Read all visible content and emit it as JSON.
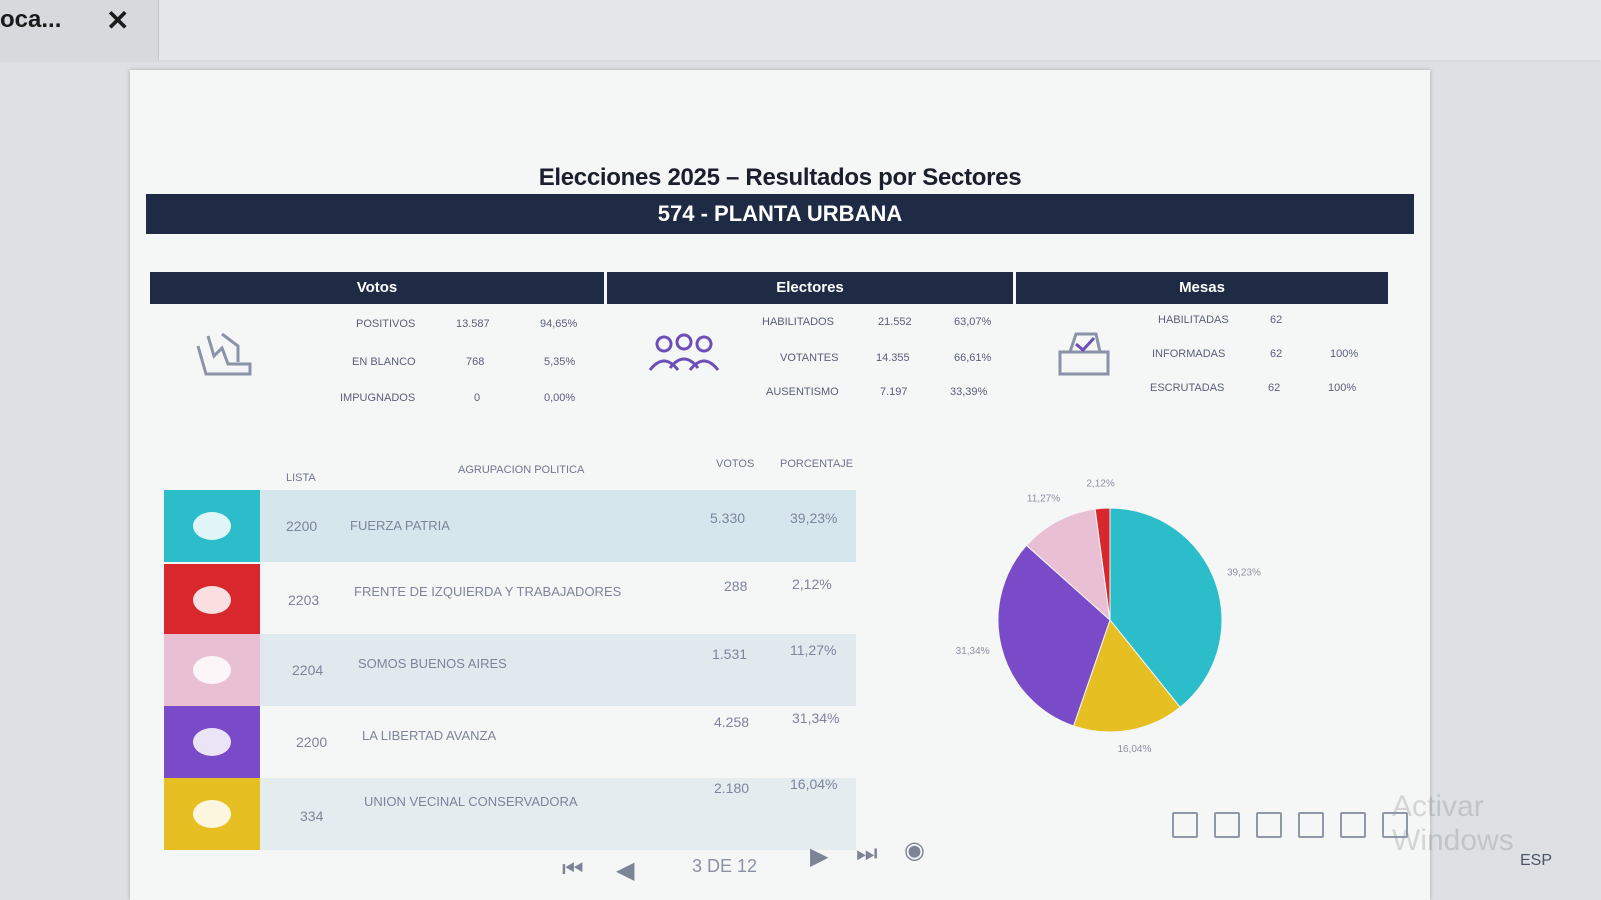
{
  "tab": {
    "title": "oca...",
    "close_label": "✕"
  },
  "report": {
    "title": "Elecciones 2025 – Resultados por Sectores",
    "subtitle": "574 - PLANTA URBANA"
  },
  "sections": {
    "votos": {
      "header": "Votos",
      "icon": "ballot-box-hand-icon",
      "rows": [
        {
          "label": "POSITIVOS",
          "value": "13.587",
          "pct": "94,65%"
        },
        {
          "label": "EN BLANCO",
          "value": "768",
          "pct": "5,35%"
        },
        {
          "label": "IMPUGNADOS",
          "value": "0",
          "pct": "0,00%"
        }
      ]
    },
    "electores": {
      "header": "Electores",
      "icon": "people-group-icon",
      "rows": [
        {
          "label": "HABILITADOS",
          "value": "21.552",
          "pct": "63,07%"
        },
        {
          "label": "VOTANTES",
          "value": "14.355",
          "pct": "66,61%"
        },
        {
          "label": "AUSENTISMO",
          "value": "7.197",
          "pct": "33,39%"
        }
      ]
    },
    "mesas": {
      "header": "Mesas",
      "icon": "ballot-box-icon",
      "rows": [
        {
          "label": "HABILITADAS",
          "value": "62",
          "pct": ""
        },
        {
          "label": "INFORMADAS",
          "value": "62",
          "pct": "100%"
        },
        {
          "label": "ESCRUTADAS",
          "value": "62",
          "pct": "100%"
        }
      ]
    }
  },
  "table": {
    "headers": {
      "lista": "LISTA",
      "agrupacion": "AGRUPACION POLITICA",
      "votos": "VOTOS",
      "porcentaje": "PORCENTAJE"
    },
    "rows": [
      {
        "lista": "2200",
        "nombre": "FUERZA PATRIA",
        "votos": "5.330",
        "pct": "39,23%",
        "color": "#2bbdca"
      },
      {
        "lista": "2203",
        "nombre": "FRENTE DE IZQUIERDA Y TRABAJADORES",
        "votos": "288",
        "pct": "2,12%",
        "color": "#d8282e"
      },
      {
        "lista": "2204",
        "nombre": "SOMOS BUENOS AIRES",
        "votos": "1.531",
        "pct": "11,27%",
        "color": "#e9bfd4"
      },
      {
        "lista": "2200",
        "nombre": "LA LIBERTAD AVANZA",
        "votos": "4.258",
        "pct": "31,34%",
        "color": "#7a4bc8"
      },
      {
        "lista": "334",
        "nombre": "UNION VECINAL CONSERVADORA",
        "votos": "2.180",
        "pct": "16,04%",
        "color": "#e6bf22"
      }
    ]
  },
  "chart_data": {
    "type": "pie",
    "categories": [
      "FUERZA PATRIA",
      "UNION VECINAL CONSERVADORA",
      "LA LIBERTAD AVANZA",
      "SOMOS BUENOS AIRES",
      "FRENTE DE IZQUIERDA Y TRABAJADORES"
    ],
    "values": [
      39.23,
      16.04,
      31.34,
      11.27,
      2.12
    ],
    "labels": [
      "39,23%",
      "16,04%",
      "31,34%",
      "11,27%",
      "2,12%"
    ],
    "colors": [
      "#2bbdca",
      "#e6bf22",
      "#7a4bc8",
      "#e9bfd4",
      "#d8282e"
    ]
  },
  "footer": {
    "page_indicator": "3 DE 12",
    "first_icon": "first-page-icon",
    "prev_icon": "previous-page-icon",
    "next_icon": "next-page-icon",
    "last_icon": "last-page-icon",
    "back_icon": "back-icon",
    "watermark": "Activar Windows",
    "language": "ESP"
  }
}
